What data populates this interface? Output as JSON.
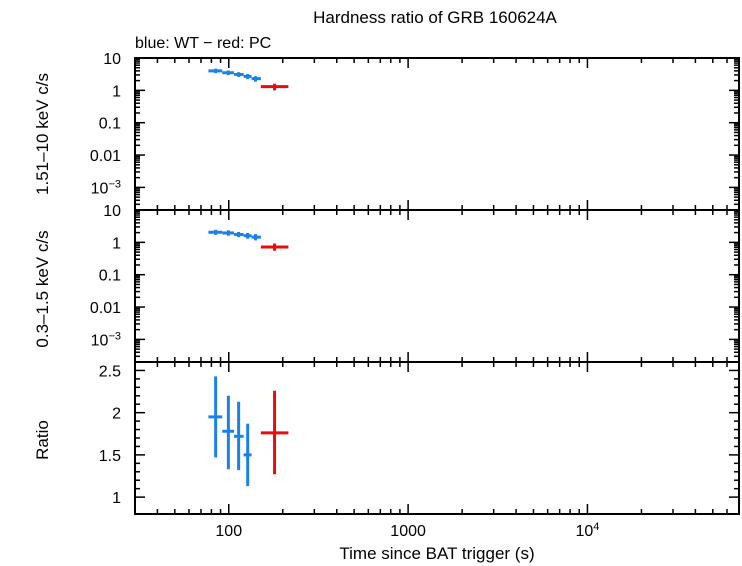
{
  "title": "Hardness ratio of GRB 160624A",
  "subtitle": "blue: WT − red: PC",
  "colors": {
    "WT": "#1a82e6",
    "PC": "#e60d0d"
  },
  "chart_data": [
    {
      "type": "scatter",
      "panel": "hard",
      "ylabel": "1.51–10 keV c/s",
      "yscale": "log",
      "ylim": [
        0.0002,
        10
      ],
      "yticks": [
        {
          "v": 10,
          "base": "10",
          "exp": ""
        },
        {
          "v": 1,
          "base": "1",
          "exp": ""
        },
        {
          "v": 0.1,
          "base": "0.1",
          "exp": ""
        },
        {
          "v": 0.01,
          "base": "0.01",
          "exp": ""
        },
        {
          "v": 0.001,
          "base": "10",
          "exp": "−3"
        }
      ],
      "series": [
        {
          "name": "WT",
          "color": "#1a82e6",
          "points": [
            {
              "x": 84.5,
              "xlo": 77,
              "xhi": 92,
              "y": 4.0,
              "ylo": 3.4,
              "yhi": 4.7
            },
            {
              "x": 99.5,
              "xlo": 92,
              "xhi": 107,
              "y": 3.5,
              "ylo": 2.95,
              "yhi": 4.1
            },
            {
              "x": 113.5,
              "xlo": 107,
              "xhi": 121,
              "y": 3.1,
              "ylo": 2.6,
              "yhi": 3.65
            },
            {
              "x": 127.5,
              "xlo": 121,
              "xhi": 134,
              "y": 2.7,
              "ylo": 2.25,
              "yhi": 3.2
            },
            {
              "x": 141,
              "xlo": 134,
              "xhi": 151,
              "y": 2.3,
              "ylo": 1.85,
              "yhi": 2.75
            }
          ]
        },
        {
          "name": "PC",
          "color": "#e60d0d",
          "points": [
            {
              "x": 180,
              "xlo": 151,
              "xhi": 215,
              "y": 1.3,
              "ylo": 1.0,
              "yhi": 1.6
            }
          ]
        }
      ]
    },
    {
      "type": "scatter",
      "panel": "soft",
      "ylabel": "0.3–1.5 keV c/s",
      "yscale": "log",
      "ylim": [
        0.0002,
        10
      ],
      "yticks": [
        {
          "v": 10,
          "base": "10",
          "exp": ""
        },
        {
          "v": 1,
          "base": "1",
          "exp": ""
        },
        {
          "v": 0.1,
          "base": "0.1",
          "exp": ""
        },
        {
          "v": 0.01,
          "base": "0.01",
          "exp": ""
        },
        {
          "v": 0.001,
          "base": "10",
          "exp": "−3"
        }
      ],
      "series": [
        {
          "name": "WT",
          "color": "#1a82e6",
          "points": [
            {
              "x": 84.5,
              "xlo": 77,
              "xhi": 92,
              "y": 2.05,
              "ylo": 1.7,
              "yhi": 2.45
            },
            {
              "x": 99.5,
              "xlo": 92,
              "xhi": 107,
              "y": 1.95,
              "ylo": 1.6,
              "yhi": 2.35
            },
            {
              "x": 113.5,
              "xlo": 107,
              "xhi": 121,
              "y": 1.75,
              "ylo": 1.45,
              "yhi": 2.1
            },
            {
              "x": 127.5,
              "xlo": 121,
              "xhi": 134,
              "y": 1.6,
              "ylo": 1.3,
              "yhi": 1.95
            },
            {
              "x": 141,
              "xlo": 134,
              "xhi": 151,
              "y": 1.45,
              "ylo": 1.15,
              "yhi": 1.8
            }
          ]
        },
        {
          "name": "PC",
          "color": "#e60d0d",
          "points": [
            {
              "x": 180,
              "xlo": 151,
              "xhi": 215,
              "y": 0.72,
              "ylo": 0.55,
              "yhi": 0.92
            }
          ]
        }
      ]
    },
    {
      "type": "scatter",
      "panel": "ratio",
      "ylabel": "Ratio",
      "yscale": "linear",
      "ylim": [
        0.8,
        2.6
      ],
      "yticks": [
        {
          "v": 1,
          "base": "1",
          "exp": ""
        },
        {
          "v": 1.5,
          "base": "1.5",
          "exp": ""
        },
        {
          "v": 2,
          "base": "2",
          "exp": ""
        },
        {
          "v": 2.5,
          "base": "2.5",
          "exp": ""
        }
      ],
      "series": [
        {
          "name": "WT",
          "color": "#1a82e6",
          "points": [
            {
              "x": 84.5,
              "xlo": 77,
              "xhi": 92,
              "y": 1.95,
              "ylo": 1.47,
              "yhi": 2.43
            },
            {
              "x": 99.5,
              "xlo": 92,
              "xhi": 107,
              "y": 1.78,
              "ylo": 1.33,
              "yhi": 2.2
            },
            {
              "x": 113.5,
              "xlo": 107,
              "xhi": 121,
              "y": 1.72,
              "ylo": 1.32,
              "yhi": 2.13
            },
            {
              "x": 127.5,
              "xlo": 121,
              "xhi": 134,
              "y": 1.5,
              "ylo": 1.13,
              "yhi": 1.87
            }
          ]
        },
        {
          "name": "PC",
          "color": "#e60d0d",
          "points": [
            {
              "x": 180,
              "xlo": 151,
              "xhi": 215,
              "y": 1.76,
              "ylo": 1.27,
              "yhi": 2.26
            }
          ]
        }
      ]
    }
  ],
  "xaxis": {
    "label": "Time since BAT trigger (s)",
    "scale": "log",
    "xlim": [
      30,
      70000
    ],
    "ticklabels": [
      {
        "v": 100,
        "base": "100",
        "exp": ""
      },
      {
        "v": 1000,
        "base": "1000",
        "exp": ""
      },
      {
        "v": 10000,
        "base": "10",
        "exp": "4"
      }
    ]
  }
}
